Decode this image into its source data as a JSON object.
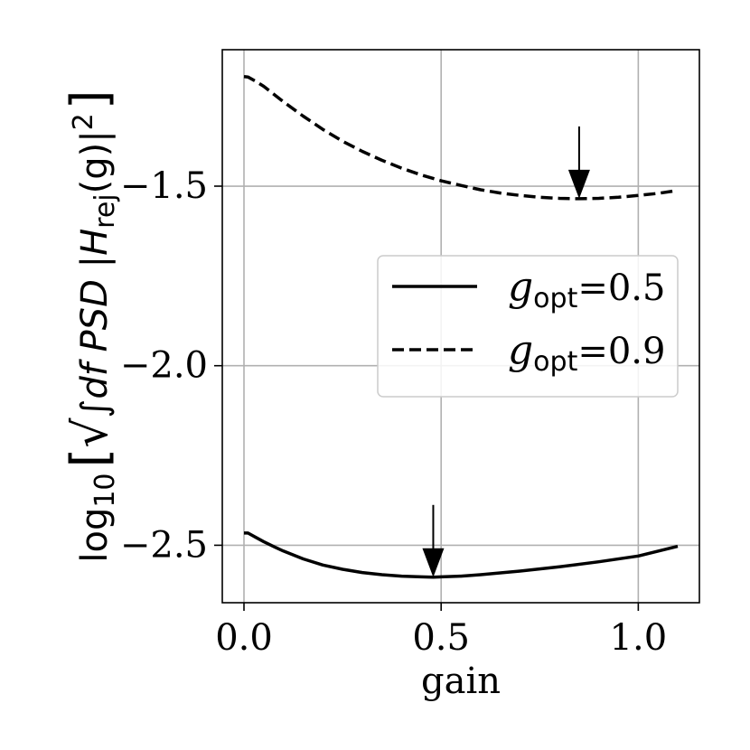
{
  "chart_data": {
    "type": "line",
    "xlabel": "gain",
    "ylabel": {
      "prefix": "log",
      "prefix_sub": "10",
      "integral": "∫",
      "body": "df PSD |H",
      "body_sub": "rej",
      "body_tail": "(g)|",
      "power": "2"
    },
    "xlim": [
      -0.055,
      1.155
    ],
    "ylim": [
      -2.66,
      -1.12
    ],
    "xticks": [
      0.0,
      0.5,
      1.0
    ],
    "xtick_labels": [
      "0.0",
      "0.5",
      "1.0"
    ],
    "yticks": [
      -1.5,
      -2.0,
      -2.5
    ],
    "ytick_labels": [
      "−1.5",
      "−2.0",
      "−2.5"
    ],
    "grid": true,
    "legend_position": "center-right",
    "series": [
      {
        "name": "g_opt=0.5",
        "legend_main": "g",
        "legend_sub": "opt",
        "legend_value": "=0.5",
        "style": "solid",
        "x": [
          0.0,
          0.01,
          0.03,
          0.05,
          0.08,
          0.1,
          0.15,
          0.2,
          0.25,
          0.3,
          0.35,
          0.4,
          0.45,
          0.48,
          0.5,
          0.55,
          0.6,
          0.7,
          0.8,
          0.9,
          1.0,
          1.1
        ],
        "y": [
          -2.466,
          -2.466,
          -2.478,
          -2.49,
          -2.506,
          -2.516,
          -2.538,
          -2.555,
          -2.567,
          -2.576,
          -2.582,
          -2.586,
          -2.588,
          -2.589,
          -2.588,
          -2.586,
          -2.582,
          -2.572,
          -2.56,
          -2.546,
          -2.53,
          -2.503
        ],
        "arrow_x": 0.48
      },
      {
        "name": "g_opt=0.9",
        "legend_main": "g",
        "legend_sub": "opt",
        "legend_value": "=0.9",
        "style": "dashed",
        "x": [
          0.0,
          0.01,
          0.03,
          0.05,
          0.1,
          0.15,
          0.2,
          0.25,
          0.3,
          0.35,
          0.4,
          0.45,
          0.5,
          0.55,
          0.6,
          0.65,
          0.7,
          0.75,
          0.8,
          0.85,
          0.9,
          0.95,
          1.0,
          1.05,
          1.1
        ],
        "y": [
          -1.195,
          -1.196,
          -1.208,
          -1.222,
          -1.265,
          -1.305,
          -1.342,
          -1.375,
          -1.403,
          -1.428,
          -1.45,
          -1.469,
          -1.485,
          -1.498,
          -1.51,
          -1.519,
          -1.526,
          -1.531,
          -1.534,
          -1.535,
          -1.534,
          -1.531,
          -1.526,
          -1.52,
          -1.512
        ],
        "arrow_x": 0.85
      }
    ]
  }
}
